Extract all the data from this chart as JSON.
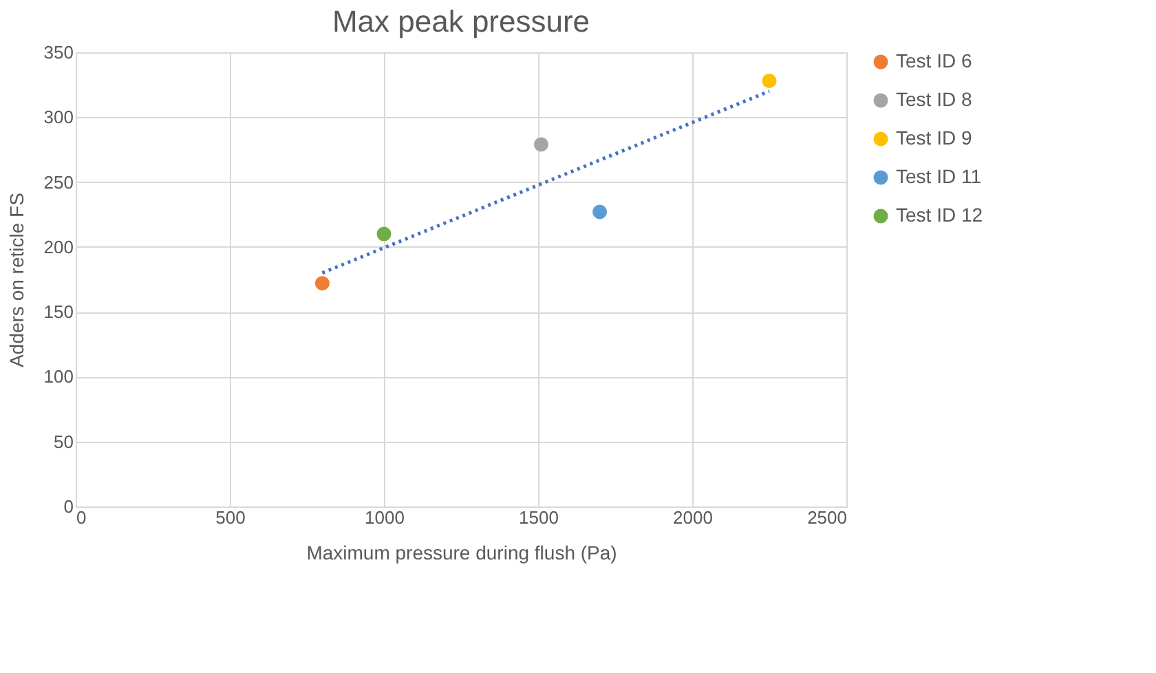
{
  "chart_data": {
    "type": "scatter",
    "title": "Max peak pressure",
    "xlabel": "Maximum pressure during flush (Pa)",
    "ylabel": "Adders on reticle FS",
    "series": [
      {
        "name": "Test ID 6",
        "color": "#ed7d31",
        "x": [
          800
        ],
        "values": [
          172
        ]
      },
      {
        "name": "Test ID 8",
        "color": "#a5a5a5",
        "x": [
          1510
        ],
        "values": [
          279
        ]
      },
      {
        "name": "Test ID 9",
        "color": "#ffc000",
        "x": [
          2250
        ],
        "values": [
          328
        ]
      },
      {
        "name": "Test ID 11",
        "color": "#5b9bd5",
        "x": [
          1700
        ],
        "values": [
          227
        ]
      },
      {
        "name": "Test ID 12",
        "color": "#70ad47",
        "x": [
          1000
        ],
        "values": [
          210
        ]
      },
      {
        "type": "line",
        "color": "#4472c4",
        "line_style": "dotted",
        "marker": "none",
        "x": [
          800,
          2250
        ],
        "values": [
          180,
          320
        ]
      }
    ],
    "xlim": [
      0,
      2500
    ],
    "xticks": [
      0,
      500,
      1000,
      1500,
      2000,
      2500
    ],
    "ylim": [
      0,
      350
    ],
    "yticks": [
      0,
      50,
      100,
      150,
      200,
      250,
      300,
      350
    ],
    "grid": true,
    "legend": "right",
    "marker": "circle"
  }
}
